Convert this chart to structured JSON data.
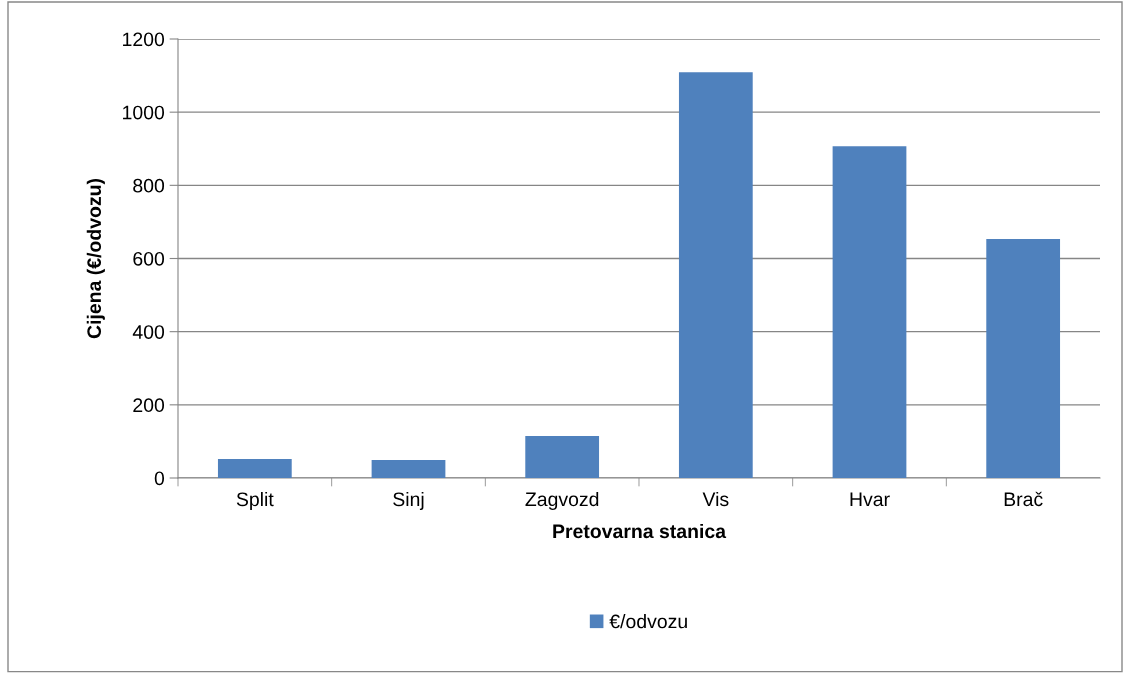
{
  "chart_data": {
    "type": "bar",
    "xlabel": "Pretovarna stanica",
    "ylabel": "Cijena (€/odvozu)",
    "categories": [
      "Split",
      "Sinj",
      "Zagvozd",
      "Vis",
      "Hvar",
      "Brač"
    ],
    "series": [
      {
        "name": "€/odvozu",
        "color": "#4f81bd",
        "values": [
          52,
          49,
          115,
          1109,
          907,
          653
        ]
      }
    ],
    "ylim": [
      0,
      1200
    ],
    "yticks": [
      0,
      200,
      400,
      600,
      800,
      1000,
      1200
    ],
    "grid": "y",
    "legend": "bottom"
  }
}
